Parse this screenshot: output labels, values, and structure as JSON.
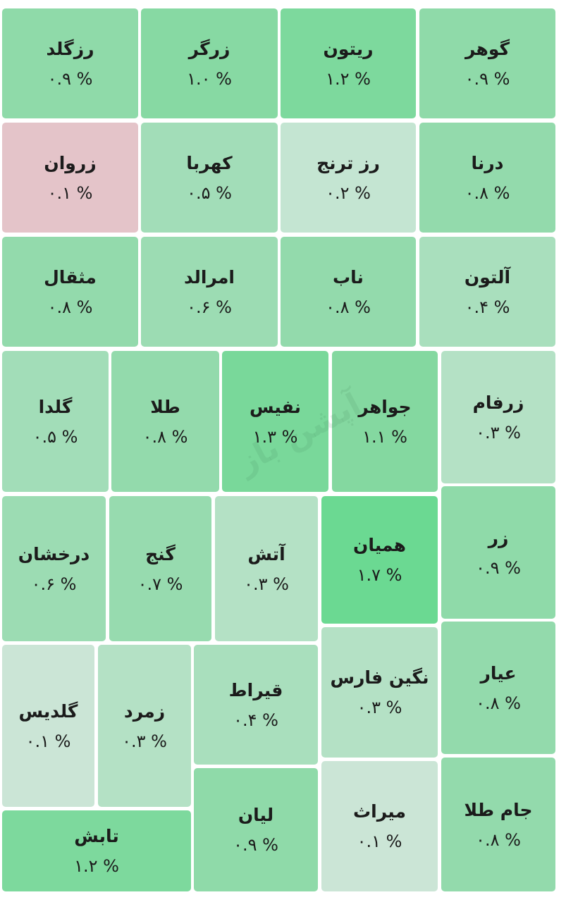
{
  "watermark": "آپشن باز",
  "tiles": [
    {
      "name": "گوهر",
      "change": "۰.۹ %",
      "color": "#8fdaa9"
    },
    {
      "name": "ریتون",
      "change": "۱.۲ %",
      "color": "#7dd99d"
    },
    {
      "name": "زرگر",
      "change": "۱.۰ %",
      "color": "#87d9a3"
    },
    {
      "name": "رزگلد",
      "change": "۰.۹ %",
      "color": "#8fdaa9"
    },
    {
      "name": "درنا",
      "change": "۰.۸ %",
      "color": "#93daac"
    },
    {
      "name": "رز ترنج",
      "change": "۰.۲ %",
      "color": "#c4e5d2"
    },
    {
      "name": "کهربا",
      "change": "۰.۵ %",
      "color": "#a2ddb8"
    },
    {
      "name": "زروان",
      "change": "۰.۱ %",
      "color": "#e4c4c9"
    },
    {
      "name": "آلتون",
      "change": "۰.۴ %",
      "color": "#a9dfbd"
    },
    {
      "name": "ناب",
      "change": "۰.۸ %",
      "color": "#93daac"
    },
    {
      "name": "امرالد",
      "change": "۰.۶ %",
      "color": "#9cdcb3"
    },
    {
      "name": "مثقال",
      "change": "۰.۸ %",
      "color": "#93daac"
    },
    {
      "name": "زرفام",
      "change": "۰.۳ %",
      "color": "#b4e1c5"
    },
    {
      "name": "جواهر",
      "change": "۱.۱ %",
      "color": "#84d8a0"
    },
    {
      "name": "نفیس",
      "change": "۱.۳ %",
      "color": "#79d89a"
    },
    {
      "name": "طلا",
      "change": "۰.۸ %",
      "color": "#93daac"
    },
    {
      "name": "گلدا",
      "change": "۰.۵ %",
      "color": "#a2ddb8"
    },
    {
      "name": "زر",
      "change": "۰.۹ %",
      "color": "#8fdaa9"
    },
    {
      "name": "همیان",
      "change": "۱.۷ %",
      "color": "#6bd992"
    },
    {
      "name": "آتش",
      "change": "۰.۳ %",
      "color": "#b4e1c5"
    },
    {
      "name": "گنج",
      "change": "۰.۷ %",
      "color": "#97dbaf"
    },
    {
      "name": "درخشان",
      "change": "۰.۶ %",
      "color": "#9cdcb3"
    },
    {
      "name": "عیار",
      "change": "۰.۸ %",
      "color": "#93daac"
    },
    {
      "name": "نگین فارس",
      "change": "۰.۳ %",
      "color": "#b4e1c5"
    },
    {
      "name": "قیراط",
      "change": "۰.۴ %",
      "color": "#a9dfbd"
    },
    {
      "name": "زمرد",
      "change": "۰.۳ %",
      "color": "#b4e1c5"
    },
    {
      "name": "گلدیس",
      "change": "۰.۱ %",
      "color": "#cbe5d6"
    },
    {
      "name": "جام طلا",
      "change": "۰.۸ %",
      "color": "#93daac"
    },
    {
      "name": "میراث",
      "change": "۰.۱ %",
      "color": "#cbe5d6"
    },
    {
      "name": "لیان",
      "change": "۰.۹ %",
      "color": "#8fdaa9"
    },
    {
      "name": "تابش",
      "change": "۱.۲ %",
      "color": "#7dd99d"
    }
  ]
}
